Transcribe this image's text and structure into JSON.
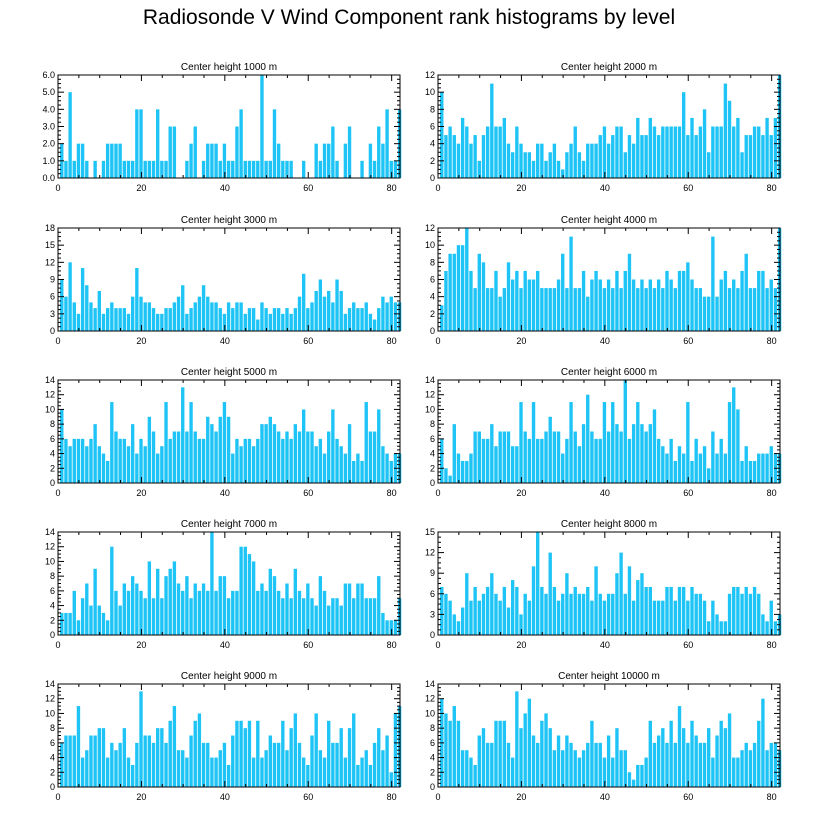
{
  "title": "Radiosonde V Wind Component rank histograms by level",
  "bar_color": "#1ec4f5",
  "chart_data": [
    {
      "type": "bar",
      "title": "Center height 1000 m",
      "xlim": [
        0,
        82
      ],
      "ylim": [
        0,
        6.0
      ],
      "xticks": [
        "0",
        "20",
        "40",
        "60",
        "80"
      ],
      "yticks": [
        "0.0",
        "1.0",
        "2.0",
        "3.0",
        "4.0",
        "5.0",
        "6.0"
      ],
      "values": [
        2,
        1,
        5,
        1,
        2,
        2,
        1,
        0,
        1,
        0,
        1,
        2,
        2,
        2,
        2,
        1,
        1,
        1,
        4,
        4,
        1,
        1,
        1,
        4,
        1,
        1,
        3,
        3,
        0,
        0,
        1,
        2,
        3,
        0,
        1,
        2,
        2,
        2,
        1,
        2,
        1,
        1,
        3,
        4,
        1,
        1,
        1,
        1,
        6,
        1,
        1,
        4,
        2,
        1,
        1,
        1,
        0,
        0,
        1,
        0,
        0,
        2,
        1,
        2,
        2,
        3,
        1,
        0,
        2,
        3,
        0,
        0,
        1,
        0,
        2,
        1,
        3,
        2,
        4,
        1,
        1,
        4
      ]
    },
    {
      "type": "bar",
      "title": "Center height 2000 m",
      "xlim": [
        0,
        82
      ],
      "ylim": [
        0,
        12
      ],
      "xticks": [
        "0",
        "20",
        "40",
        "60",
        "80"
      ],
      "yticks": [
        "0",
        "2",
        "4",
        "6",
        "8",
        "10",
        "12"
      ],
      "values": [
        10,
        5,
        6,
        5,
        4,
        7,
        6,
        4,
        5,
        2,
        5,
        6,
        11,
        6,
        6,
        7,
        4,
        3,
        6,
        4,
        3,
        3,
        2,
        4,
        4,
        2,
        3,
        4,
        2,
        1,
        3,
        4,
        6,
        3,
        2,
        4,
        4,
        4,
        5,
        6,
        4,
        5,
        6,
        6,
        3,
        5,
        4,
        7,
        5,
        5,
        7,
        6,
        5,
        6,
        6,
        6,
        6,
        6,
        10,
        5,
        7,
        5,
        6,
        8,
        3,
        6,
        6,
        6,
        11,
        9,
        6,
        7,
        3,
        5,
        5,
        6,
        6,
        5,
        7,
        5,
        7,
        12
      ]
    },
    {
      "type": "bar",
      "title": "Center height 3000 m",
      "xlim": [
        0,
        82
      ],
      "ylim": [
        0,
        18
      ],
      "xticks": [
        "0",
        "20",
        "40",
        "60",
        "80"
      ],
      "yticks": [
        "0",
        "3",
        "6",
        "9",
        "12",
        "15",
        "18"
      ],
      "values": [
        9,
        6,
        12,
        5,
        3,
        11,
        8,
        5,
        4,
        7,
        3,
        4,
        5,
        4,
        4,
        4,
        3,
        6,
        11,
        6,
        5,
        5,
        4,
        3,
        3,
        4,
        4,
        5,
        6,
        8,
        3,
        4,
        5,
        6,
        8,
        6,
        5,
        5,
        4,
        3,
        5,
        4,
        5,
        5,
        3,
        4,
        4,
        2,
        5,
        4,
        3,
        4,
        4,
        3,
        4,
        3,
        4,
        6,
        10,
        4,
        5,
        7,
        9,
        6,
        7,
        5,
        9,
        7,
        3,
        4,
        5,
        4,
        4,
        5,
        3,
        2,
        4,
        6,
        5,
        6,
        5,
        5
      ]
    },
    {
      "type": "bar",
      "title": "Center height 4000 m",
      "xlim": [
        0,
        82
      ],
      "ylim": [
        0,
        12
      ],
      "xticks": [
        "0",
        "20",
        "40",
        "60",
        "80"
      ],
      "yticks": [
        "0",
        "2",
        "4",
        "6",
        "8",
        "10",
        "12"
      ],
      "values": [
        3,
        7,
        9,
        9,
        10,
        10,
        12,
        7,
        5,
        9,
        8,
        5,
        5,
        7,
        4,
        5,
        8,
        6,
        7,
        5,
        7,
        6,
        6,
        7,
        5,
        5,
        5,
        5,
        6,
        9,
        5,
        11,
        5,
        5,
        7,
        4,
        6,
        7,
        6,
        5,
        6,
        5,
        7,
        5,
        7,
        9,
        6,
        5,
        6,
        5,
        6,
        5,
        6,
        5,
        7,
        6,
        5,
        7,
        7,
        8,
        6,
        5,
        5,
        4,
        4,
        11,
        4,
        6,
        7,
        5,
        6,
        5,
        7,
        9,
        5,
        5,
        7,
        7,
        5,
        6,
        5,
        12
      ]
    },
    {
      "type": "bar",
      "title": "Center height 5000 m",
      "xlim": [
        0,
        82
      ],
      "ylim": [
        0,
        14
      ],
      "xticks": [
        "0",
        "20",
        "40",
        "60",
        "80"
      ],
      "yticks": [
        "0",
        "2",
        "4",
        "6",
        "8",
        "10",
        "12",
        "14"
      ],
      "values": [
        10,
        6,
        5,
        6,
        6,
        6,
        5,
        6,
        8,
        5,
        4,
        3,
        11,
        7,
        6,
        6,
        5,
        8,
        4,
        6,
        5,
        9,
        7,
        4,
        5,
        11,
        6,
        7,
        7,
        13,
        7,
        11,
        7,
        6,
        6,
        9,
        8,
        7,
        9,
        11,
        9,
        4,
        6,
        5,
        6,
        6,
        5,
        6,
        8,
        8,
        9,
        8,
        7,
        6,
        7,
        6,
        8,
        7,
        10,
        7,
        7,
        5,
        6,
        4,
        7,
        10,
        6,
        5,
        4,
        8,
        3,
        4,
        3,
        11,
        7,
        7,
        10,
        5,
        4,
        3,
        4,
        4
      ]
    },
    {
      "type": "bar",
      "title": "Center height 6000 m",
      "xlim": [
        0,
        82
      ],
      "ylim": [
        0,
        14
      ],
      "xticks": [
        "0",
        "20",
        "40",
        "60",
        "80"
      ],
      "yticks": [
        "0",
        "2",
        "4",
        "6",
        "8",
        "10",
        "12",
        "14"
      ],
      "values": [
        6,
        2,
        1,
        8,
        4,
        3,
        3,
        4,
        7,
        7,
        6,
        6,
        8,
        5,
        7,
        7,
        7,
        5,
        5,
        11,
        7,
        6,
        11,
        6,
        6,
        7,
        9,
        7,
        7,
        4,
        6,
        11,
        7,
        5,
        8,
        12,
        7,
        6,
        6,
        11,
        7,
        11,
        8,
        7,
        14,
        6,
        8,
        11,
        8,
        7,
        8,
        10,
        6,
        5,
        4,
        6,
        3,
        5,
        4,
        11,
        3,
        6,
        4,
        5,
        2,
        7,
        4,
        6,
        4,
        11,
        13,
        10,
        3,
        5,
        3,
        3,
        4,
        4,
        4,
        5,
        4,
        4
      ]
    },
    {
      "type": "bar",
      "title": "Center height 7000 m",
      "xlim": [
        0,
        82
      ],
      "ylim": [
        0,
        14
      ],
      "xticks": [
        "0",
        "20",
        "40",
        "60",
        "80"
      ],
      "yticks": [
        "0",
        "2",
        "4",
        "6",
        "8",
        "10",
        "12",
        "14"
      ],
      "values": [
        3,
        3,
        3,
        6,
        2,
        5,
        7,
        4,
        9,
        4,
        3,
        2,
        12,
        6,
        4,
        7,
        6,
        8,
        7,
        6,
        5,
        10,
        5,
        9,
        5,
        8,
        9,
        10,
        7,
        6,
        8,
        5,
        7,
        6,
        7,
        6,
        14,
        6,
        8,
        8,
        5,
        6,
        6,
        12,
        12,
        11,
        10,
        6,
        7,
        6,
        9,
        8,
        6,
        5,
        7,
        5,
        9,
        6,
        5,
        7,
        5,
        4,
        8,
        6,
        4,
        5,
        5,
        4,
        7,
        7,
        5,
        7,
        7,
        5,
        5,
        5,
        8,
        3,
        2,
        2,
        2,
        5
      ]
    },
    {
      "type": "bar",
      "title": "Center height 8000 m",
      "xlim": [
        0,
        82
      ],
      "ylim": [
        0,
        15
      ],
      "xticks": [
        "0",
        "20",
        "40",
        "60",
        "80"
      ],
      "yticks": [
        "0",
        "3",
        "6",
        "9",
        "12",
        "15"
      ],
      "values": [
        7,
        6,
        5,
        3,
        2,
        4,
        9,
        5,
        7,
        5,
        6,
        7,
        9,
        6,
        5,
        7,
        4,
        8,
        7,
        3,
        6,
        5,
        10,
        15,
        7,
        6,
        12,
        7,
        5,
        6,
        9,
        6,
        7,
        6,
        6,
        7,
        5,
        10,
        6,
        5,
        6,
        6,
        9,
        12,
        6,
        10,
        5,
        8,
        9,
        7,
        7,
        5,
        5,
        5,
        7,
        7,
        5,
        7,
        7,
        5,
        7,
        6,
        6,
        5,
        2,
        5,
        3,
        2,
        2,
        6,
        7,
        7,
        6,
        7,
        6,
        7,
        6,
        3,
        2,
        5,
        2,
        3
      ]
    },
    {
      "type": "bar",
      "title": "Center height 9000 m",
      "xlim": [
        0,
        82
      ],
      "ylim": [
        0,
        14
      ],
      "xticks": [
        "0",
        "20",
        "40",
        "60",
        "80"
      ],
      "yticks": [
        "0",
        "2",
        "4",
        "6",
        "8",
        "10",
        "12",
        "14"
      ],
      "values": [
        6,
        7,
        7,
        7,
        11,
        4,
        5,
        7,
        7,
        8,
        8,
        4,
        6,
        5,
        6,
        8,
        4,
        3,
        6,
        13,
        7,
        7,
        6,
        8,
        8,
        6,
        9,
        11,
        5,
        5,
        4,
        7,
        9,
        10,
        6,
        6,
        4,
        4,
        5,
        6,
        3,
        7,
        9,
        9,
        8,
        9,
        4,
        9,
        4,
        5,
        7,
        6,
        6,
        9,
        5,
        8,
        10,
        6,
        4,
        3,
        7,
        10,
        5,
        4,
        9,
        6,
        6,
        8,
        4,
        8,
        10,
        3,
        4,
        5,
        3,
        6,
        8,
        5,
        7,
        2,
        10,
        11
      ]
    },
    {
      "type": "bar",
      "title": "Center height 10000 m",
      "xlim": [
        0,
        82
      ],
      "ylim": [
        0,
        14
      ],
      "xticks": [
        "0",
        "20",
        "40",
        "60",
        "80"
      ],
      "yticks": [
        "0",
        "2",
        "4",
        "6",
        "8",
        "10",
        "12",
        "14"
      ],
      "values": [
        12,
        10,
        9,
        11,
        9,
        5,
        5,
        4,
        3,
        7,
        8,
        6,
        6,
        9,
        9,
        9,
        6,
        4,
        13,
        8,
        10,
        12,
        7,
        6,
        9,
        10,
        8,
        5,
        7,
        5,
        7,
        6,
        5,
        4,
        5,
        6,
        9,
        6,
        6,
        4,
        7,
        4,
        8,
        5,
        5,
        2,
        1,
        3,
        3,
        4,
        9,
        6,
        7,
        8,
        6,
        9,
        6,
        11,
        8,
        6,
        9,
        7,
        6,
        6,
        8,
        4,
        7,
        9,
        8,
        10,
        4,
        4,
        5,
        6,
        5,
        6,
        9,
        12,
        5,
        6,
        6,
        5
      ]
    }
  ]
}
